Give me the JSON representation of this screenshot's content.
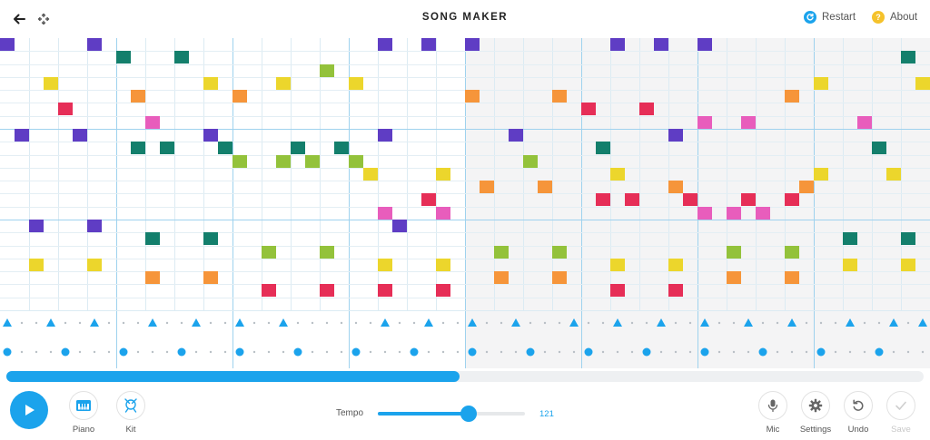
{
  "header": {
    "title": "SONG MAKER",
    "back_icon": "arrow-left-icon",
    "move_icon": "move-arrows-icon",
    "restart_label": "Restart",
    "about_label": "About",
    "about_glyph": "?",
    "colors": {
      "restart": "#1ba3ec",
      "about": "#f5c22b"
    }
  },
  "grid": {
    "columns": 64,
    "rows": 21,
    "beats_per_bar": 4,
    "subdivision": 2,
    "octave_rows": 7,
    "shaded_bars": [
      4,
      5,
      6,
      7,
      12,
      13,
      14,
      15
    ],
    "row_colors": [
      "#5f3dc4",
      "#137f6c",
      "#93c23b",
      "#ecd62c",
      "#f6953a",
      "#e62e57",
      "#e85dbc"
    ],
    "notes": [
      [
        0,
        0
      ],
      [
        6,
        0
      ],
      [
        26,
        0
      ],
      [
        29,
        0
      ],
      [
        32,
        0
      ],
      [
        42,
        0
      ],
      [
        45,
        0
      ],
      [
        48,
        0
      ],
      [
        8,
        1
      ],
      [
        12,
        1
      ],
      [
        62,
        1
      ],
      [
        22,
        2
      ],
      [
        3,
        3
      ],
      [
        14,
        3
      ],
      [
        19,
        3
      ],
      [
        24,
        3
      ],
      [
        56,
        3
      ],
      [
        63,
        3
      ],
      [
        9,
        4
      ],
      [
        16,
        4
      ],
      [
        32,
        4
      ],
      [
        38,
        4
      ],
      [
        54,
        4
      ],
      [
        4,
        5
      ],
      [
        40,
        5
      ],
      [
        44,
        5
      ],
      [
        10,
        6
      ],
      [
        48,
        6
      ],
      [
        51,
        6
      ],
      [
        59,
        6
      ],
      [
        1,
        7
      ],
      [
        5,
        7
      ],
      [
        14,
        7
      ],
      [
        26,
        7
      ],
      [
        35,
        7
      ],
      [
        46,
        7
      ],
      [
        9,
        8
      ],
      [
        11,
        8
      ],
      [
        15,
        8
      ],
      [
        20,
        8
      ],
      [
        23,
        8
      ],
      [
        41,
        8
      ],
      [
        60,
        8
      ],
      [
        16,
        9
      ],
      [
        19,
        9
      ],
      [
        21,
        9
      ],
      [
        24,
        9
      ],
      [
        36,
        9
      ],
      [
        25,
        10
      ],
      [
        30,
        10
      ],
      [
        42,
        10
      ],
      [
        56,
        10
      ],
      [
        61,
        10
      ],
      [
        33,
        11
      ],
      [
        37,
        11
      ],
      [
        46,
        11
      ],
      [
        55,
        11
      ],
      [
        29,
        12
      ],
      [
        41,
        12
      ],
      [
        43,
        12
      ],
      [
        47,
        12
      ],
      [
        51,
        12
      ],
      [
        54,
        12
      ],
      [
        26,
        13
      ],
      [
        30,
        13
      ],
      [
        48,
        13
      ],
      [
        50,
        13
      ],
      [
        52,
        13
      ],
      [
        2,
        14
      ],
      [
        6,
        14
      ],
      [
        27,
        14
      ],
      [
        10,
        15
      ],
      [
        14,
        15
      ],
      [
        58,
        15
      ],
      [
        62,
        15
      ],
      [
        18,
        16
      ],
      [
        22,
        16
      ],
      [
        34,
        16
      ],
      [
        38,
        16
      ],
      [
        50,
        16
      ],
      [
        54,
        16
      ],
      [
        2,
        17
      ],
      [
        6,
        17
      ],
      [
        26,
        17
      ],
      [
        30,
        17
      ],
      [
        42,
        17
      ],
      [
        46,
        17
      ],
      [
        58,
        17
      ],
      [
        62,
        17
      ],
      [
        10,
        18
      ],
      [
        14,
        18
      ],
      [
        34,
        18
      ],
      [
        38,
        18
      ],
      [
        50,
        18
      ],
      [
        54,
        18
      ],
      [
        18,
        19
      ],
      [
        22,
        19
      ],
      [
        26,
        19
      ],
      [
        30,
        19
      ],
      [
        42,
        19
      ],
      [
        46,
        19
      ]
    ]
  },
  "rhythm": {
    "color": "#1ba3ec",
    "dot_color": "#b9c0c6",
    "triangles": [
      0,
      3,
      6,
      10,
      13,
      16,
      19,
      26,
      29,
      32,
      35,
      39,
      42,
      45,
      48,
      51,
      54,
      58,
      61,
      63
    ],
    "circles": [
      0,
      4,
      8,
      12,
      16,
      20,
      24,
      28,
      32,
      36,
      40,
      44,
      48,
      52,
      56,
      60
    ]
  },
  "scroll": {
    "position_fraction": 0.494
  },
  "controls": {
    "play_icon": "play-icon",
    "piano_label": "Piano",
    "kit_label": "Kit",
    "tempo_label": "Tempo",
    "tempo_value": "121",
    "tempo_fraction": 0.62,
    "mic_label": "Mic",
    "settings_label": "Settings",
    "undo_label": "Undo",
    "save_label": "Save"
  }
}
